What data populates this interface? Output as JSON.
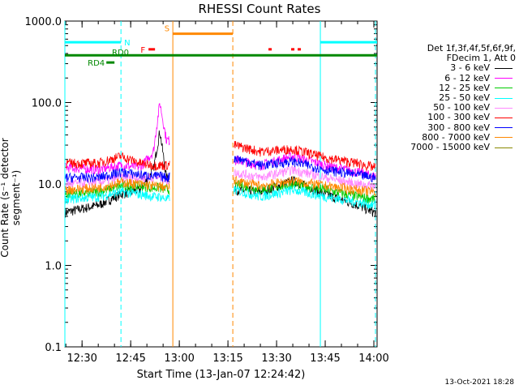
{
  "chart_data": {
    "type": "line",
    "title": "RHESSI Count Rates",
    "xlabel": "Start Time (13-Jan-07 12:24:42)",
    "ylabel": "Count Rate (s⁻¹ detector segment⁻¹)",
    "y_scale": "log",
    "ylim": [
      0.1,
      1000
    ],
    "xlim": [
      "12:24:42",
      "14:01:00"
    ],
    "x_ticks": [
      "12:30",
      "12:45",
      "13:00",
      "13:15",
      "13:30",
      "13:45",
      "14:00"
    ],
    "y_ticks": [
      "0.1",
      "1.0",
      "10.0",
      "100.0",
      "1000.0"
    ],
    "legend": {
      "header": [
        "Det 1f,3f,4f,5f,6f,9f,",
        "FDecim 1, Att 0"
      ],
      "placement": "right"
    },
    "data_gap": [
      "12:58:00",
      "13:16:30"
    ],
    "series": [
      {
        "name": "3 - 6 keV",
        "color": "#000000",
        "x": [
          "12:25",
          "12:35",
          "12:42",
          "12:48",
          "12:52",
          "12:54",
          "12:56",
          "13:17",
          "13:25",
          "13:35",
          "13:45",
          "13:55",
          "14:00"
        ],
        "values": [
          4.5,
          5.5,
          7.5,
          8.5,
          15,
          45,
          12,
          8.5,
          8,
          11,
          7.5,
          5.5,
          4.5
        ]
      },
      {
        "name": "6 - 12 keV",
        "color": "#ff00ff",
        "x": [
          "12:25",
          "12:35",
          "12:42",
          "12:48",
          "12:52",
          "12:54",
          "12:56",
          "13:17",
          "13:25",
          "13:35",
          "13:45",
          "13:55",
          "14:00"
        ],
        "values": [
          16,
          15,
          17,
          16,
          25,
          100,
          35,
          20,
          17,
          22,
          17,
          14,
          12.5
        ]
      },
      {
        "name": "12 - 25 keV",
        "color": "#00cc00",
        "x": [
          "12:25",
          "12:35",
          "12:42",
          "12:48",
          "12:52",
          "12:54",
          "12:56",
          "13:17",
          "13:25",
          "13:35",
          "13:45",
          "13:55",
          "14:00"
        ],
        "values": [
          7.5,
          8,
          9.5,
          9.5,
          9,
          9,
          8.5,
          10,
          8.5,
          10,
          8.5,
          7,
          6.5
        ]
      },
      {
        "name": "25 - 50 keV",
        "color": "#00ffff",
        "x": [
          "12:25",
          "12:35",
          "12:42",
          "12:48",
          "12:52",
          "12:54",
          "12:56",
          "13:17",
          "13:25",
          "13:35",
          "13:45",
          "13:55",
          "14:00"
        ],
        "values": [
          6.5,
          7,
          8,
          7.5,
          7,
          7,
          6.5,
          8.5,
          7,
          8.5,
          7,
          6,
          5.5
        ]
      },
      {
        "name": "50 - 100 keV",
        "color": "#ff88ff",
        "x": [
          "12:25",
          "12:35",
          "12:42",
          "12:48",
          "12:52",
          "12:54",
          "12:56",
          "13:17",
          "13:25",
          "13:35",
          "13:45",
          "13:55",
          "14:00"
        ],
        "values": [
          10,
          10.5,
          12,
          12,
          12,
          12,
          11,
          14,
          12,
          15,
          12,
          10,
          9.5
        ]
      },
      {
        "name": "100 - 300 keV",
        "color": "#ff0000",
        "x": [
          "12:25",
          "12:35",
          "12:42",
          "12:48",
          "12:52",
          "12:54",
          "12:56",
          "13:17",
          "13:25",
          "13:35",
          "13:45",
          "13:55",
          "14:00"
        ],
        "values": [
          18,
          18,
          22,
          18,
          17,
          17,
          17,
          30,
          25,
          27,
          21,
          18,
          16
        ]
      },
      {
        "name": "300 - 800 keV",
        "color": "#0000ff",
        "x": [
          "12:25",
          "12:35",
          "12:42",
          "12:48",
          "12:52",
          "12:54",
          "12:56",
          "13:17",
          "13:25",
          "13:35",
          "13:45",
          "13:55",
          "14:00"
        ],
        "values": [
          12,
          12,
          14,
          13,
          12.5,
          12.5,
          12,
          21,
          17,
          19,
          15,
          13,
          12
        ]
      },
      {
        "name": "800 - 7000 keV",
        "color": "#ff8800",
        "x": [
          "12:25",
          "12:35",
          "12:42",
          "12:48",
          "12:52",
          "12:54",
          "12:56",
          "13:17",
          "13:25",
          "13:35",
          "13:45",
          "13:55",
          "14:00"
        ],
        "values": [
          8.5,
          9,
          10.5,
          10,
          9.5,
          9.5,
          9,
          11,
          9.5,
          11,
          9.5,
          8.5,
          8
        ]
      },
      {
        "name": "7000 - 15000 keV",
        "color": "#888800",
        "x": [],
        "values": []
      }
    ],
    "annotations": {
      "vertical_lines": [
        {
          "time": "12:24:42",
          "color": "#00ffff",
          "style": "solid"
        },
        {
          "time": "12:42:00",
          "color": "#00ffff",
          "style": "dashed"
        },
        {
          "time": "12:58:00",
          "color": "#ff8800",
          "style": "solid"
        },
        {
          "time": "13:16:30",
          "color": "#ff8800",
          "style": "dashed"
        },
        {
          "time": "13:43:30",
          "color": "#00ffff",
          "style": "solid"
        },
        {
          "time": "14:00:30",
          "color": "#00ffff",
          "style": "dashed"
        }
      ],
      "bars": [
        {
          "label": "N",
          "color": "#00ffff",
          "segments": [
            [
              "12:24:42",
              "12:42:00"
            ],
            [
              "13:43:30",
              "14:01:00"
            ]
          ],
          "y": 550
        },
        {
          "label": "S",
          "color": "#ff8800",
          "segments": [
            [
              "12:58:00",
              "13:16:30"
            ]
          ],
          "y": 700
        },
        {
          "label": "F",
          "color": "#ff0000",
          "segments": [
            [
              "12:50:30",
              "12:52:30"
            ],
            [
              "13:27:30",
              "13:28:30"
            ],
            [
              "13:34:30",
              "13:35:30"
            ],
            [
              "13:36:30",
              "13:37:30"
            ]
          ],
          "y": 450
        },
        {
          "label": "RD0",
          "color": "#008800",
          "segments": [
            [
              "12:24:42",
              "14:01:00"
            ]
          ],
          "y": 380
        },
        {
          "label": "RD4",
          "color": "#008800",
          "segments": [
            [
              "12:37:30",
              "12:40:00"
            ]
          ],
          "y": 310
        }
      ]
    }
  },
  "footer": {
    "timestamp": "13-Oct-2021 18:28"
  }
}
